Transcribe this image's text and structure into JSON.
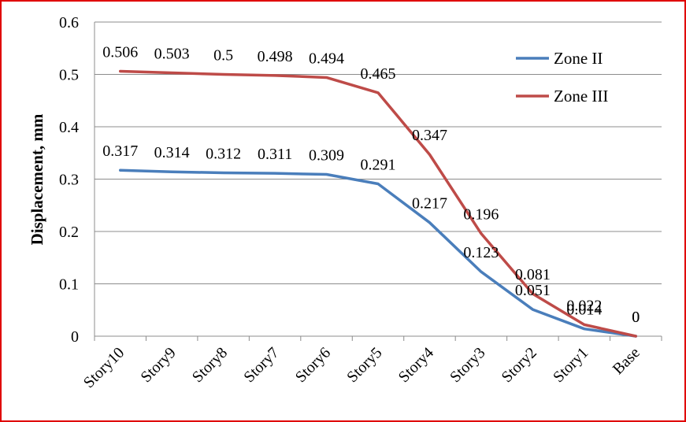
{
  "chart_data": {
    "type": "line",
    "title": "",
    "xlabel": "",
    "ylabel": "Displacement, mm",
    "categories": [
      "Story10",
      "Story9",
      "Story8",
      "Story7",
      "Story6",
      "Story5",
      "Story4",
      "Story3",
      "Story2",
      "Story1",
      "Base"
    ],
    "ylim": [
      0,
      0.6
    ],
    "yticks": [
      "0",
      "0.1",
      "0.2",
      "0.3",
      "0.4",
      "0.5",
      "0.6"
    ],
    "grid": true,
    "legend_position": "top-right",
    "series": [
      {
        "name": "Zone II",
        "color": "#4a7ebb",
        "values": [
          0.317,
          0.314,
          0.312,
          0.311,
          0.309,
          0.291,
          0.217,
          0.123,
          0.051,
          0.014,
          0
        ],
        "labels": [
          "0.317",
          "0.314",
          "0.312",
          "0.311",
          "0.309",
          "0.291",
          "0.217",
          "0.123",
          "0.051",
          "0.014",
          "0"
        ]
      },
      {
        "name": "Zone III",
        "color": "#be4b48",
        "values": [
          0.506,
          0.503,
          0.5,
          0.498,
          0.494,
          0.465,
          0.347,
          0.196,
          0.081,
          0.022,
          0
        ],
        "labels": [
          "0.506",
          "0.503",
          "0.5",
          "0.498",
          "0.494",
          "0.465",
          "0.347",
          "0.196",
          "0.081",
          "0.022",
          "0"
        ]
      }
    ]
  }
}
